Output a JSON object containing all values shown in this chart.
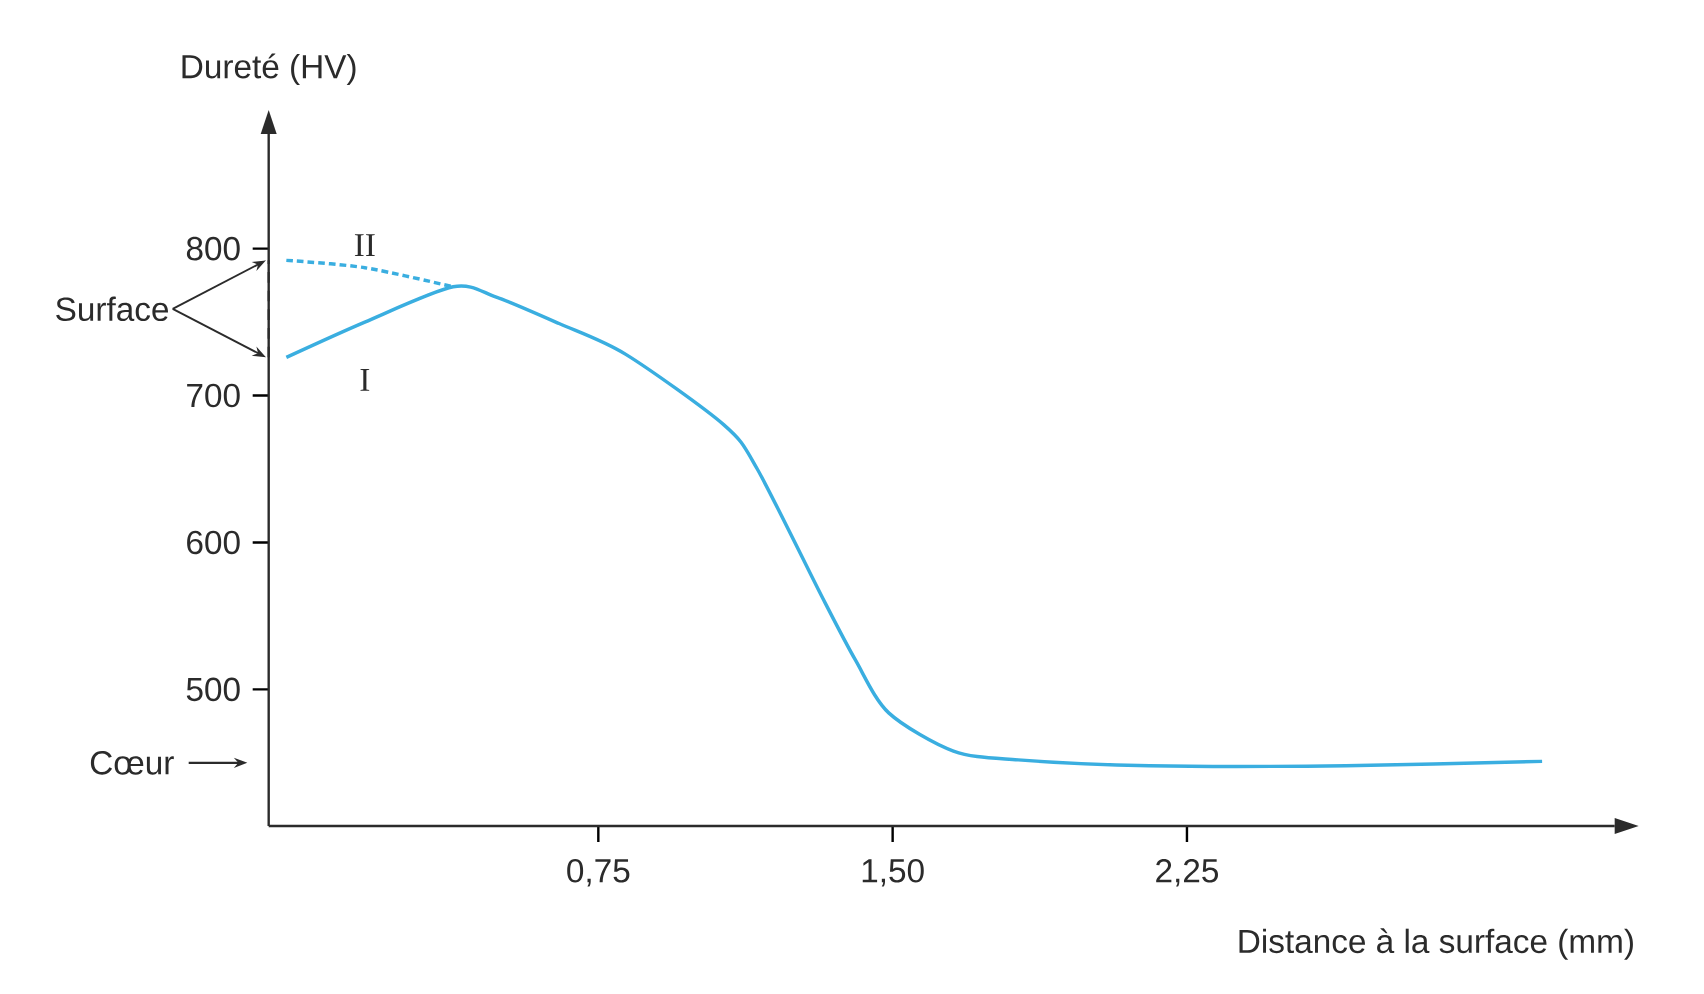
{
  "chart_data": {
    "type": "line",
    "xlabel": "Distance à la surface (mm)",
    "ylabel": "Dureté (HV)",
    "xlim": [
      -0.09,
      3.34
    ],
    "ylim": [
      407,
      878
    ],
    "xticks": [
      {
        "value": 0.75,
        "label": "0,75"
      },
      {
        "value": 1.5,
        "label": "1,50"
      },
      {
        "value": 2.25,
        "label": "2,25"
      }
    ],
    "yticks": [
      500,
      600,
      700,
      800
    ],
    "series": [
      {
        "name": "II",
        "color": "#3aaee0",
        "line_style": "dashed",
        "x": [
          -0.045,
          0.155,
          0.38
        ],
        "values": [
          792,
          787,
          774
        ]
      },
      {
        "name": "I",
        "color": "#3aaee0",
        "line_style": "solid",
        "x": [
          -0.045,
          0.155,
          0.38,
          0.49,
          0.65,
          0.82,
          1.07,
          1.155,
          1.32,
          1.405,
          1.49,
          1.655,
          1.82,
          2.155,
          2.655,
          3.155
        ],
        "values": [
          726,
          750,
          774,
          767,
          749,
          728,
          680,
          650,
          563,
          520,
          484,
          458,
          452,
          448,
          448,
          451
        ]
      }
    ],
    "ref_lines": [
      {
        "axis": "y",
        "value": 450,
        "label": "Cœur"
      }
    ],
    "annotations": [
      "Surface"
    ]
  }
}
